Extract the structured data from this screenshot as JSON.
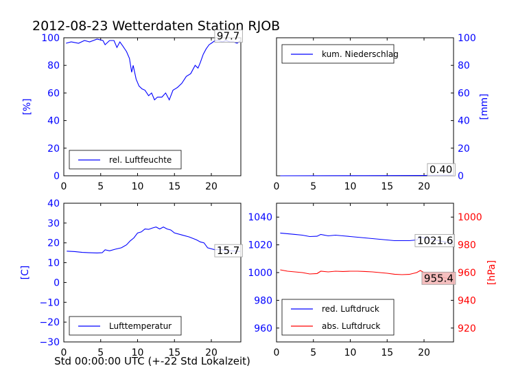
{
  "figure": {
    "title": "2012-08-23 Wetterdaten Station RJOB",
    "xlabel": "Std 00:00:00 UTC (+-22 Std Lokalzeit)"
  },
  "colors": {
    "blue": "#0000ff",
    "red": "#ff0000",
    "black": "#000000"
  },
  "chart_data": [
    {
      "id": "humidity",
      "type": "line",
      "xlim": [
        0,
        24
      ],
      "ylim": [
        0,
        100
      ],
      "xticks": [
        "0",
        "5",
        "10",
        "15",
        "20"
      ],
      "yticks": [
        "0",
        "20",
        "40",
        "60",
        "80",
        "100"
      ],
      "ylabel": "[%]",
      "annotation": "97.7",
      "legend": {
        "position": "lower-left",
        "entries": [
          "rel. Luftfeuchte"
        ]
      },
      "series": [
        {
          "name": "rel. Luftfeuchte",
          "color": "#0000ff",
          "x": [
            0.3,
            1,
            2,
            2.8,
            3.5,
            4.5,
            5.3,
            5.6,
            6.2,
            6.8,
            7.2,
            7.6,
            8,
            8.5,
            8.9,
            9.2,
            9.4,
            9.8,
            10.2,
            10.6,
            11,
            11.5,
            11.9,
            12.3,
            12.7,
            13.3,
            13.8,
            14.3,
            14.8,
            15.4,
            16,
            16.6,
            17.2,
            17.8,
            18.2,
            18.5,
            18.9,
            19.3,
            19.7,
            20,
            20.5,
            21,
            21.5,
            22,
            22.5,
            23,
            23.5,
            23.9
          ],
          "y": [
            96,
            97,
            96,
            98,
            97,
            99,
            98,
            95,
            98,
            98,
            93,
            97,
            94,
            90,
            85,
            75,
            80,
            70,
            65,
            63,
            62,
            58,
            60,
            55,
            57,
            57,
            60,
            55,
            62,
            64,
            67,
            72,
            74,
            80,
            78,
            82,
            88,
            92,
            95,
            96,
            98,
            98,
            97,
            98,
            97,
            97,
            96,
            97.7
          ]
        }
      ]
    },
    {
      "id": "precip",
      "type": "line",
      "xlim": [
        0,
        24
      ],
      "ylim": [
        0,
        100
      ],
      "xticks": [
        "0",
        "5",
        "10",
        "15",
        "20"
      ],
      "yticks": [
        "0",
        "20",
        "40",
        "60",
        "80",
        "100"
      ],
      "ylabel": "[mm]",
      "annotation": "0.40",
      "legend": {
        "position": "upper-left",
        "entries": [
          "kum. Niederschlag"
        ]
      },
      "series": [
        {
          "name": "kum. Niederschlag",
          "color": "#0000ff",
          "x": [
            0.5,
            12,
            20,
            21,
            23.9
          ],
          "y": [
            0,
            0.1,
            0.2,
            0.3,
            0.4
          ]
        }
      ]
    },
    {
      "id": "temperature",
      "type": "line",
      "xlim": [
        0,
        24
      ],
      "ylim": [
        -30,
        40
      ],
      "xticks": [
        "0",
        "5",
        "10",
        "15",
        "20"
      ],
      "yticks": [
        "−30",
        "−20",
        "−10",
        "0",
        "10",
        "20",
        "30",
        "40"
      ],
      "ylabel": "[C]",
      "annotation": "15.7",
      "legend": {
        "position": "lower-left",
        "entries": [
          "Lufttemperatur"
        ]
      },
      "series": [
        {
          "name": "Lufttemperatur",
          "color": "#0000ff",
          "x": [
            0.4,
            1.5,
            2.5,
            3.5,
            4.5,
            5.2,
            5.6,
            6.2,
            7,
            7.8,
            8.5,
            9,
            9.5,
            10,
            10.5,
            11,
            11.5,
            12,
            12.5,
            13,
            13.5,
            14,
            14.5,
            15,
            16,
            17,
            18,
            18.5,
            19,
            19.5,
            20,
            20.5,
            21,
            22,
            23,
            23.9
          ],
          "y": [
            15.8,
            15.6,
            15.2,
            15,
            14.9,
            15,
            16.5,
            16,
            16.8,
            17.5,
            19,
            21,
            22.5,
            25,
            25.5,
            27,
            26.8,
            27.5,
            28,
            27,
            28,
            27,
            26.5,
            25,
            24,
            23,
            21.5,
            20.5,
            20,
            17.5,
            17,
            16.5,
            16.8,
            16.2,
            15.9,
            15.7
          ]
        }
      ]
    },
    {
      "id": "pressure",
      "type": "line",
      "xlim": [
        0,
        24
      ],
      "ylim": [
        950,
        1050
      ],
      "ylim_right": [
        910,
        1010
      ],
      "xticks": [
        "0",
        "5",
        "10",
        "15",
        "20"
      ],
      "yticks": [
        "960",
        "980",
        "1000",
        "1020",
        "1040"
      ],
      "yticks_right": [
        "920",
        "940",
        "960",
        "980",
        "1000"
      ],
      "ylabel": "",
      "ylabel_right": "[hPa]",
      "annotations": [
        "1021.6",
        "955.4"
      ],
      "legend": {
        "position": "lower-left",
        "entries": [
          "red. Luftdruck",
          "abs. Luftdruck"
        ]
      },
      "series": [
        {
          "name": "red. Luftdruck",
          "color": "#0000ff",
          "axis": "left",
          "x": [
            0.5,
            1.5,
            2.5,
            3.5,
            4.5,
            5.5,
            6,
            7,
            8,
            9,
            10,
            11,
            12,
            13,
            14,
            15,
            16,
            17,
            18,
            19,
            19.5,
            20,
            21,
            22,
            23,
            23.9
          ],
          "y": [
            1028.5,
            1028,
            1027.5,
            1027,
            1026,
            1026.2,
            1027.5,
            1026.5,
            1027,
            1026.5,
            1026,
            1025.5,
            1025,
            1024.5,
            1024,
            1023.5,
            1023,
            1023,
            1023,
            1023.5,
            1025.8,
            1025,
            1024,
            1023,
            1022,
            1021.6
          ]
        },
        {
          "name": "abs. Luftdruck",
          "color": "#ff0000",
          "axis": "right",
          "x": [
            0.5,
            1.5,
            2.5,
            3.5,
            4.5,
            5.5,
            6,
            7,
            8,
            9,
            10,
            11,
            12,
            13,
            14,
            15,
            16,
            17,
            18,
            19,
            19.5,
            20,
            21,
            22,
            23,
            23.9
          ],
          "y": [
            962,
            961,
            960.5,
            960,
            959,
            959.3,
            961,
            960.5,
            961,
            960.8,
            961,
            961,
            960.8,
            960.5,
            960,
            959.5,
            958.8,
            958.5,
            958.7,
            960,
            961.5,
            960,
            958.5,
            957,
            956,
            955.4
          ]
        }
      ]
    }
  ]
}
